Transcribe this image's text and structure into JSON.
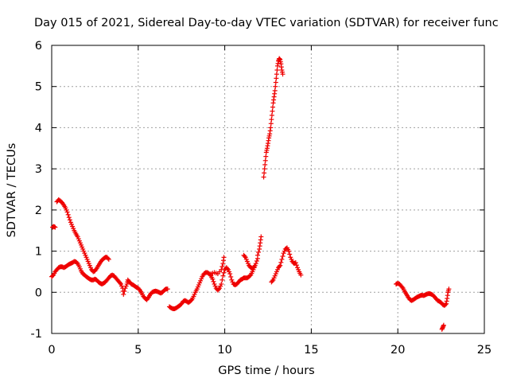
{
  "chart_data": {
    "type": "scatter",
    "title": "Day 015 of 2021, Sidereal Day-to-day VTEC variation (SDTVAR) for receiver func",
    "xlabel": "GPS time / hours",
    "ylabel": "SDTVAR / TECUs",
    "xlim": [
      0,
      25
    ],
    "ylim": [
      -1,
      6
    ],
    "xticks": [
      "0",
      "5",
      "10",
      "15",
      "20",
      "25"
    ],
    "yticks": [
      "-1",
      "0",
      "1",
      "2",
      "3",
      "4",
      "5",
      "6"
    ],
    "grid": true,
    "marker": "+",
    "color": "#ee0000",
    "series": [
      {
        "name": "SDTVAR",
        "segments": [
          [
            [
              0.05,
              1.58
            ],
            [
              0.12,
              1.6
            ],
            [
              0.2,
              1.58
            ]
          ],
          [
            [
              0.0,
              0.38
            ],
            [
              0.1,
              0.42
            ],
            [
              0.2,
              0.5
            ],
            [
              0.3,
              0.55
            ],
            [
              0.4,
              0.6
            ],
            [
              0.5,
              0.62
            ],
            [
              0.6,
              0.62
            ],
            [
              0.7,
              0.6
            ],
            [
              0.8,
              0.62
            ],
            [
              0.9,
              0.65
            ],
            [
              1.0,
              0.68
            ],
            [
              1.1,
              0.7
            ],
            [
              1.2,
              0.72
            ],
            [
              1.3,
              0.75
            ],
            [
              1.4,
              0.74
            ],
            [
              1.5,
              0.7
            ],
            [
              1.6,
              0.62
            ],
            [
              1.7,
              0.52
            ],
            [
              1.8,
              0.45
            ],
            [
              1.9,
              0.42
            ],
            [
              2.0,
              0.38
            ],
            [
              2.1,
              0.35
            ],
            [
              2.2,
              0.32
            ],
            [
              2.3,
              0.3
            ],
            [
              2.4,
              0.3
            ],
            [
              2.5,
              0.32
            ],
            [
              2.6,
              0.3
            ],
            [
              2.7,
              0.25
            ],
            [
              2.8,
              0.22
            ],
            [
              2.9,
              0.2
            ],
            [
              3.0,
              0.22
            ],
            [
              3.1,
              0.25
            ],
            [
              3.2,
              0.3
            ],
            [
              3.3,
              0.35
            ],
            [
              3.4,
              0.4
            ],
            [
              3.5,
              0.42
            ],
            [
              3.6,
              0.4
            ],
            [
              3.7,
              0.35
            ],
            [
              3.8,
              0.3
            ],
            [
              3.9,
              0.25
            ],
            [
              4.0,
              0.2
            ],
            [
              4.1,
              0.1
            ],
            [
              4.15,
              -0.05
            ],
            [
              4.25,
              0.1
            ],
            [
              4.35,
              0.2
            ],
            [
              4.4,
              0.3
            ],
            [
              4.5,
              0.25
            ],
            [
              4.6,
              0.2
            ],
            [
              4.7,
              0.18
            ],
            [
              4.8,
              0.15
            ],
            [
              4.9,
              0.12
            ],
            [
              5.0,
              0.1
            ],
            [
              5.1,
              0.05
            ],
            [
              5.2,
              -0.02
            ],
            [
              5.3,
              -0.1
            ],
            [
              5.4,
              -0.15
            ],
            [
              5.5,
              -0.18
            ],
            [
              5.6,
              -0.12
            ],
            [
              5.7,
              -0.05
            ],
            [
              5.8,
              0.0
            ],
            [
              5.9,
              0.02
            ],
            [
              6.0,
              0.03
            ],
            [
              6.1,
              0.02
            ],
            [
              6.2,
              0.0
            ],
            [
              6.3,
              -0.02
            ],
            [
              6.4,
              0.0
            ],
            [
              6.5,
              0.05
            ],
            [
              6.6,
              0.08
            ],
            [
              6.7,
              0.08
            ]
          ],
          [
            [
              0.3,
              2.2
            ],
            [
              0.4,
              2.25
            ],
            [
              0.5,
              2.22
            ],
            [
              0.6,
              2.18
            ],
            [
              0.7,
              2.12
            ],
            [
              0.8,
              2.05
            ],
            [
              0.9,
              1.95
            ],
            [
              1.0,
              1.82
            ],
            [
              1.1,
              1.7
            ],
            [
              1.2,
              1.6
            ],
            [
              1.3,
              1.5
            ],
            [
              1.4,
              1.42
            ],
            [
              1.5,
              1.35
            ],
            [
              1.6,
              1.25
            ],
            [
              1.7,
              1.15
            ],
            [
              1.8,
              1.05
            ],
            [
              1.9,
              0.95
            ],
            [
              2.0,
              0.85
            ],
            [
              2.1,
              0.75
            ],
            [
              2.2,
              0.65
            ],
            [
              2.3,
              0.55
            ],
            [
              2.4,
              0.5
            ],
            [
              2.5,
              0.52
            ],
            [
              2.6,
              0.58
            ],
            [
              2.7,
              0.65
            ],
            [
              2.8,
              0.72
            ],
            [
              2.9,
              0.78
            ],
            [
              3.0,
              0.82
            ],
            [
              3.1,
              0.85
            ],
            [
              3.2,
              0.85
            ],
            [
              3.3,
              0.8
            ]
          ],
          [
            [
              6.8,
              -0.35
            ],
            [
              6.9,
              -0.38
            ],
            [
              7.0,
              -0.4
            ],
            [
              7.1,
              -0.4
            ],
            [
              7.2,
              -0.38
            ],
            [
              7.3,
              -0.35
            ],
            [
              7.4,
              -0.32
            ],
            [
              7.5,
              -0.28
            ],
            [
              7.6,
              -0.22
            ],
            [
              7.7,
              -0.2
            ],
            [
              7.8,
              -0.22
            ],
            [
              7.9,
              -0.25
            ],
            [
              8.0,
              -0.22
            ],
            [
              8.1,
              -0.18
            ],
            [
              8.2,
              -0.1
            ],
            [
              8.3,
              0.0
            ],
            [
              8.4,
              0.08
            ],
            [
              8.5,
              0.18
            ],
            [
              8.6,
              0.28
            ],
            [
              8.7,
              0.38
            ],
            [
              8.8,
              0.45
            ],
            [
              8.9,
              0.48
            ],
            [
              9.0,
              0.48
            ],
            [
              9.1,
              0.45
            ],
            [
              9.2,
              0.4
            ],
            [
              9.3,
              0.32
            ],
            [
              9.4,
              0.2
            ],
            [
              9.5,
              0.1
            ],
            [
              9.6,
              0.05
            ],
            [
              9.7,
              0.1
            ],
            [
              9.8,
              0.2
            ],
            [
              9.9,
              0.4
            ],
            [
              10.0,
              0.55
            ],
            [
              10.1,
              0.6
            ],
            [
              10.2,
              0.55
            ],
            [
              10.3,
              0.45
            ],
            [
              10.4,
              0.3
            ],
            [
              10.5,
              0.2
            ],
            [
              10.6,
              0.18
            ],
            [
              10.7,
              0.2
            ],
            [
              10.8,
              0.25
            ],
            [
              10.9,
              0.3
            ],
            [
              11.0,
              0.32
            ],
            [
              11.1,
              0.35
            ],
            [
              11.2,
              0.35
            ],
            [
              11.3,
              0.35
            ],
            [
              11.4,
              0.38
            ],
            [
              11.5,
              0.42
            ],
            [
              11.6,
              0.5
            ],
            [
              11.7,
              0.6
            ],
            [
              11.8,
              0.7
            ],
            [
              11.9,
              0.82
            ]
          ],
          [
            [
              9.2,
              0.45
            ],
            [
              9.4,
              0.48
            ],
            [
              9.6,
              0.45
            ],
            [
              9.8,
              0.55
            ],
            [
              9.9,
              0.7
            ],
            [
              9.95,
              0.85
            ]
          ],
          [
            [
              11.1,
              0.9
            ],
            [
              11.2,
              0.85
            ],
            [
              11.3,
              0.75
            ],
            [
              11.4,
              0.65
            ],
            [
              11.5,
              0.6
            ],
            [
              11.6,
              0.58
            ],
            [
              11.7,
              0.62
            ]
          ],
          [
            [
              11.9,
              0.9
            ],
            [
              12.0,
              1.05
            ],
            [
              12.05,
              1.2
            ],
            [
              12.1,
              1.35
            ]
          ],
          [
            [
              12.25,
              2.8
            ],
            [
              12.3,
              3.0
            ],
            [
              12.35,
              3.2
            ],
            [
              12.4,
              3.4
            ],
            [
              12.45,
              3.5
            ],
            [
              12.5,
              3.62
            ],
            [
              12.55,
              3.75
            ],
            [
              12.6,
              3.85
            ],
            [
              12.65,
              4.0
            ],
            [
              12.7,
              4.2
            ],
            [
              12.75,
              4.4
            ],
            [
              12.8,
              4.6
            ],
            [
              12.85,
              4.75
            ],
            [
              12.9,
              4.9
            ],
            [
              12.95,
              5.1
            ],
            [
              13.0,
              5.3
            ],
            [
              13.05,
              5.5
            ],
            [
              13.1,
              5.62
            ],
            [
              13.15,
              5.68
            ],
            [
              13.2,
              5.65
            ],
            [
              13.25,
              5.55
            ],
            [
              13.3,
              5.4
            ],
            [
              13.35,
              5.3
            ]
          ],
          [
            [
              12.7,
              0.25
            ],
            [
              12.8,
              0.3
            ],
            [
              12.9,
              0.4
            ],
            [
              13.0,
              0.5
            ],
            [
              13.1,
              0.6
            ],
            [
              13.2,
              0.65
            ],
            [
              13.3,
              0.8
            ],
            [
              13.4,
              0.95
            ],
            [
              13.5,
              1.05
            ],
            [
              13.6,
              1.08
            ],
            [
              13.7,
              1.0
            ],
            [
              13.8,
              0.85
            ],
            [
              13.9,
              0.75
            ],
            [
              14.0,
              0.7
            ],
            [
              14.1,
              0.72
            ],
            [
              14.2,
              0.6
            ],
            [
              14.3,
              0.5
            ],
            [
              14.4,
              0.42
            ]
          ],
          [
            [
              19.9,
              0.2
            ],
            [
              20.0,
              0.22
            ],
            [
              20.1,
              0.2
            ],
            [
              20.2,
              0.15
            ],
            [
              20.3,
              0.1
            ],
            [
              20.4,
              0.02
            ],
            [
              20.5,
              -0.05
            ],
            [
              20.6,
              -0.12
            ],
            [
              20.7,
              -0.18
            ],
            [
              20.8,
              -0.2
            ],
            [
              20.9,
              -0.18
            ],
            [
              21.0,
              -0.15
            ],
            [
              21.1,
              -0.12
            ],
            [
              21.2,
              -0.1
            ],
            [
              21.3,
              -0.08
            ],
            [
              21.4,
              -0.07
            ],
            [
              21.5,
              -0.08
            ],
            [
              21.6,
              -0.06
            ],
            [
              21.7,
              -0.04
            ],
            [
              21.8,
              -0.03
            ],
            [
              21.9,
              -0.04
            ],
            [
              22.0,
              -0.06
            ],
            [
              22.1,
              -0.1
            ],
            [
              22.2,
              -0.15
            ],
            [
              22.3,
              -0.2
            ],
            [
              22.4,
              -0.22
            ],
            [
              22.5,
              -0.25
            ],
            [
              22.6,
              -0.3
            ],
            [
              22.7,
              -0.32
            ],
            [
              22.8,
              -0.28
            ],
            [
              22.85,
              -0.15
            ],
            [
              22.9,
              0.0
            ],
            [
              22.95,
              0.08
            ]
          ],
          [
            [
              22.55,
              -0.9
            ],
            [
              22.6,
              -0.85
            ],
            [
              22.65,
              -0.8
            ]
          ]
        ]
      }
    ]
  }
}
